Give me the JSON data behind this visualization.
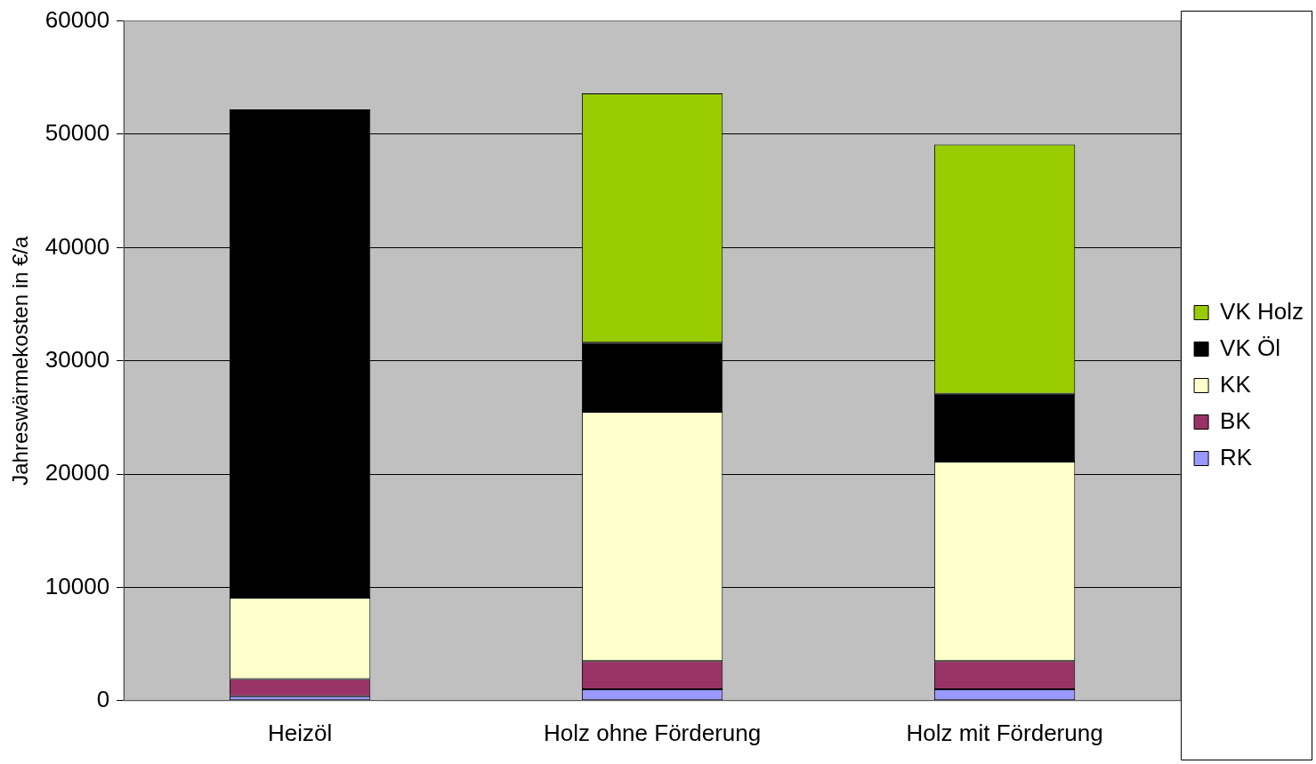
{
  "chart_data": {
    "type": "bar",
    "stacked": true,
    "ylabel": "Jahreswärmekosten in €/a",
    "categories": [
      "Heizöl",
      "Holz ohne Förderung",
      "Holz mit Förderung"
    ],
    "series": [
      {
        "name": "RK",
        "color": "#9999ff",
        "values": [
          400,
          1000,
          1000
        ]
      },
      {
        "name": "BK",
        "color": "#993366",
        "values": [
          1500,
          2500,
          2500
        ]
      },
      {
        "name": "KK",
        "color": "#ffffcc",
        "values": [
          7200,
          22000,
          17600
        ]
      },
      {
        "name": "VK Öl",
        "color": "#000000",
        "values": [
          43100,
          6100,
          6000
        ]
      },
      {
        "name": "VK Holz",
        "color": "#99cc00",
        "values": [
          null,
          22000,
          22000
        ]
      }
    ],
    "ylim": [
      0,
      60000
    ],
    "yticks": [
      0,
      10000,
      20000,
      30000,
      40000,
      50000,
      60000
    ],
    "grid": "y",
    "legend": "right"
  }
}
